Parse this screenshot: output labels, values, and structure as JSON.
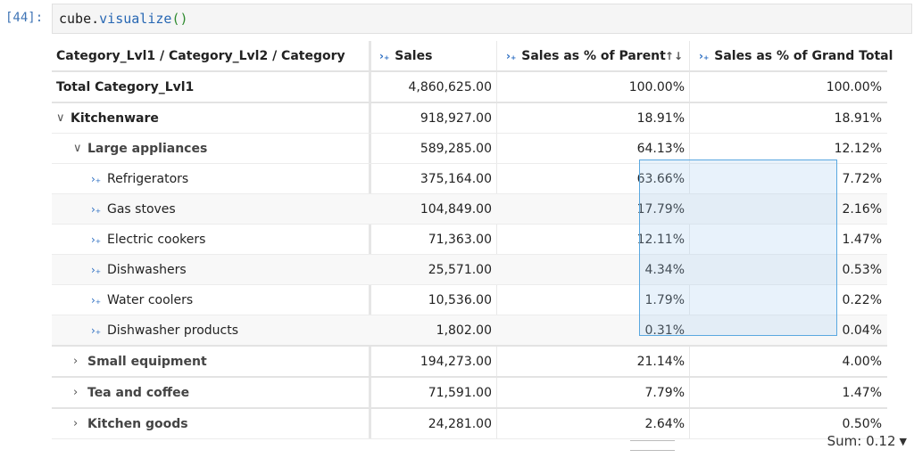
{
  "prompt": "[44]:",
  "code": {
    "obj": "cube",
    "dot": ".",
    "fn": "visualize",
    "paren": "()"
  },
  "headers": [
    "Category_Lvl1 / Category_Lvl2 / Category",
    "Sales",
    "Sales as % of Parent",
    "Sales as % of Grand Total"
  ],
  "icons": {
    "measure": "expand-measure-icon",
    "sort": "sort-icon",
    "expanded": "chevron-down-icon",
    "collapsed": "chevron-right-icon",
    "leaf": "expand-leaf-icon"
  },
  "rows": [
    {
      "label": "Total Category_Lvl1",
      "sales": "4,860,625.00",
      "pct_parent": "100.00%",
      "pct_total": "100.00%"
    },
    {
      "label": "Kitchenware",
      "sales": "918,927.00",
      "pct_parent": "18.91%",
      "pct_total": "18.91%"
    },
    {
      "label": "Large appliances",
      "sales": "589,285.00",
      "pct_parent": "64.13%",
      "pct_total": "12.12%"
    },
    {
      "label": "Refrigerators",
      "sales": "375,164.00",
      "pct_parent": "63.66%",
      "pct_total": "7.72%"
    },
    {
      "label": "Gas stoves",
      "sales": "104,849.00",
      "pct_parent": "17.79%",
      "pct_total": "2.16%"
    },
    {
      "label": "Electric cookers",
      "sales": "71,363.00",
      "pct_parent": "12.11%",
      "pct_total": "1.47%"
    },
    {
      "label": "Dishwashers",
      "sales": "25,571.00",
      "pct_parent": "4.34%",
      "pct_total": "0.53%"
    },
    {
      "label": "Water coolers",
      "sales": "10,536.00",
      "pct_parent": "1.79%",
      "pct_total": "0.22%"
    },
    {
      "label": "Dishwasher products",
      "sales": "1,802.00",
      "pct_parent": "0.31%",
      "pct_total": "0.04%"
    },
    {
      "label": "Small equipment",
      "sales": "194,273.00",
      "pct_parent": "21.14%",
      "pct_total": "4.00%"
    },
    {
      "label": "Tea and coffee",
      "sales": "71,591.00",
      "pct_parent": "7.79%",
      "pct_total": "1.47%"
    },
    {
      "label": "Kitchen goods",
      "sales": "24,281.00",
      "pct_parent": "2.64%",
      "pct_total": "0.50%"
    }
  ],
  "summary": {
    "label": "Sum: 0.12"
  }
}
